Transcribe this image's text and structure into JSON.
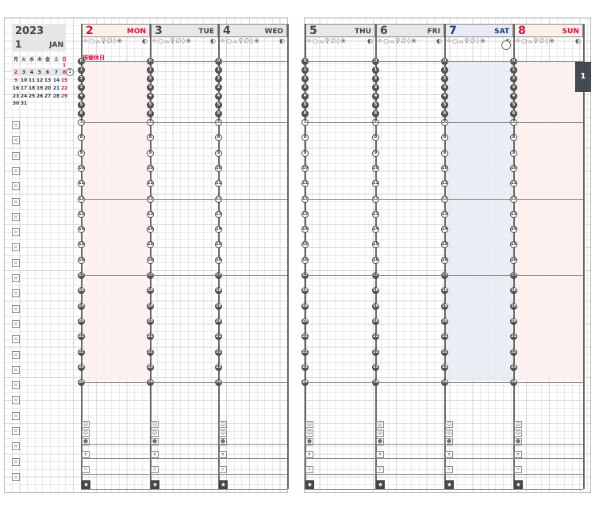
{
  "year": "2023",
  "month_num": "1",
  "month_name": "JAN",
  "mini_calendar": {
    "headers": [
      "月",
      "火",
      "水",
      "木",
      "金",
      "土",
      "日"
    ],
    "weeks": [
      [
        "",
        "",
        "",
        "",
        "",
        "",
        "1"
      ],
      [
        "2",
        "3",
        "4",
        "5",
        "6",
        "7",
        "8"
      ],
      [
        "9",
        "10",
        "11",
        "12",
        "13",
        "14",
        "15"
      ],
      [
        "16",
        "17",
        "18",
        "19",
        "20",
        "21",
        "22"
      ],
      [
        "23",
        "24",
        "25",
        "26",
        "27",
        "28",
        "29"
      ],
      [
        "30",
        "31",
        "",
        "",
        "",
        "",
        ""
      ]
    ],
    "highlight_week_number": "1",
    "red_dates": [
      "1",
      "2",
      "8",
      "9",
      "15",
      "22",
      "29"
    ],
    "blue_dates": [
      "7",
      "14",
      "21",
      "28"
    ]
  },
  "week_tab": "1",
  "days": [
    {
      "num": "2",
      "dow": "MON",
      "type": "holiday",
      "note": "振替休日"
    },
    {
      "num": "3",
      "dow": "TUE",
      "type": "weekday",
      "note": ""
    },
    {
      "num": "4",
      "dow": "WED",
      "type": "weekday",
      "note": ""
    },
    {
      "num": "5",
      "dow": "THU",
      "type": "weekday",
      "note": ""
    },
    {
      "num": "6",
      "dow": "FRI",
      "type": "weekday",
      "note": ""
    },
    {
      "num": "7",
      "dow": "SAT",
      "type": "saturday",
      "note": ""
    },
    {
      "num": "8",
      "dow": "SUN",
      "type": "holiday",
      "note": ""
    }
  ],
  "weather_icons": "☼○⌓♀∅◊❀",
  "moon_icon": "moon-phase-icon",
  "hours": [
    "0",
    "1",
    "2",
    "3",
    "4",
    "5",
    "6",
    "7",
    "8",
    "9",
    "10",
    "11",
    "12",
    "13",
    "14",
    "15",
    "16",
    "17",
    "18",
    "19",
    "20",
    "21",
    "22",
    "23",
    "24"
  ],
  "colors": {
    "red": "#d0103a",
    "blue": "#1a3a7a",
    "holiday_bg": "#fdf0ec",
    "sat_bg": "#e8ebf3",
    "head_gray": "#e8e8e8",
    "tab": "#444a50"
  }
}
